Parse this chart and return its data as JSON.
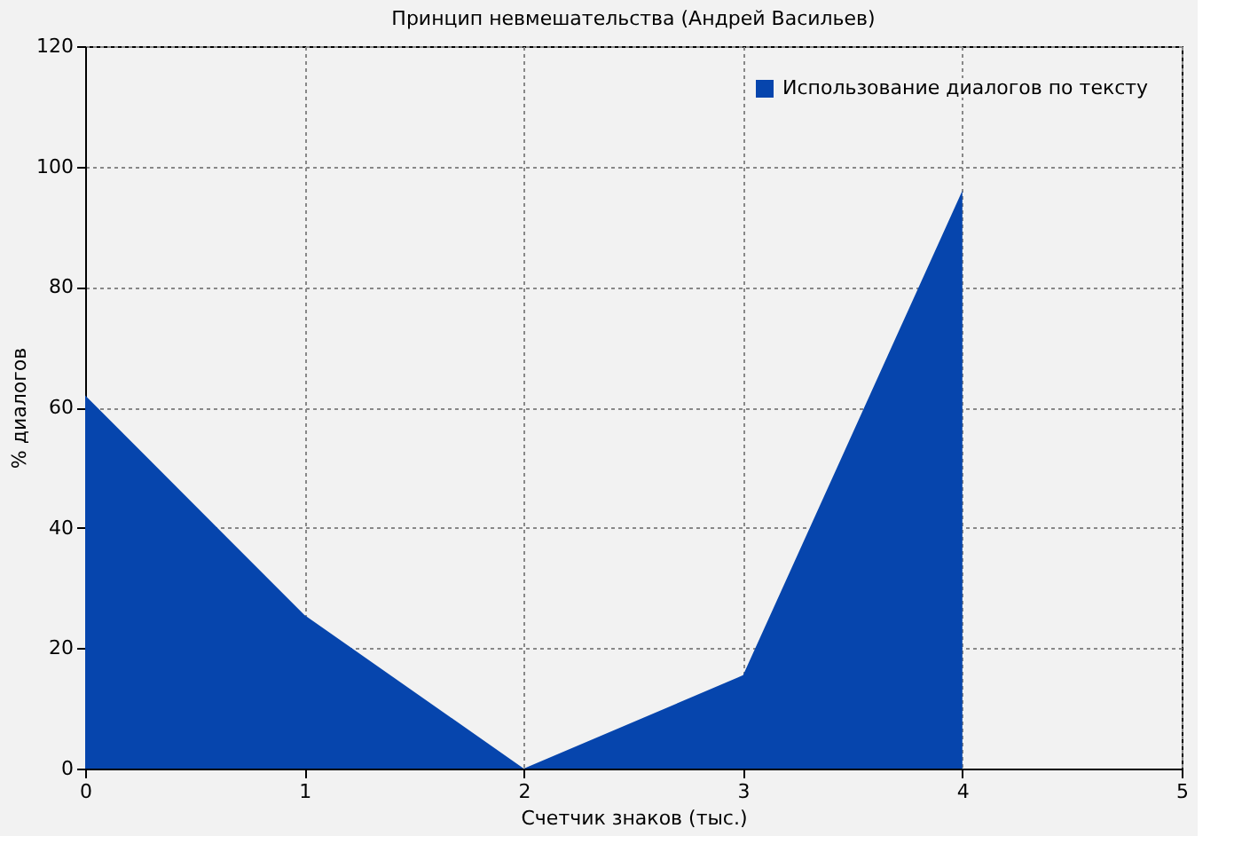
{
  "chart_data": {
    "type": "area",
    "title": "Принцип невмешательства (Андрей Васильев)",
    "xlabel": "Счетчик знаков (тыс.)",
    "ylabel": "% диалогов",
    "x": [
      0,
      1,
      2,
      3,
      4
    ],
    "series": [
      {
        "name": "Использование диалогов по тексту",
        "color": "#0645ad",
        "values": [
          62,
          25.5,
          0,
          15.5,
          96
        ]
      }
    ],
    "xlim": [
      0,
      5
    ],
    "xticks": [
      0,
      1,
      2,
      3,
      4,
      5
    ],
    "ylim": [
      0,
      120
    ],
    "yticks": [
      0,
      20,
      40,
      60,
      80,
      100,
      120
    ],
    "grid": true,
    "legend": "top right"
  }
}
